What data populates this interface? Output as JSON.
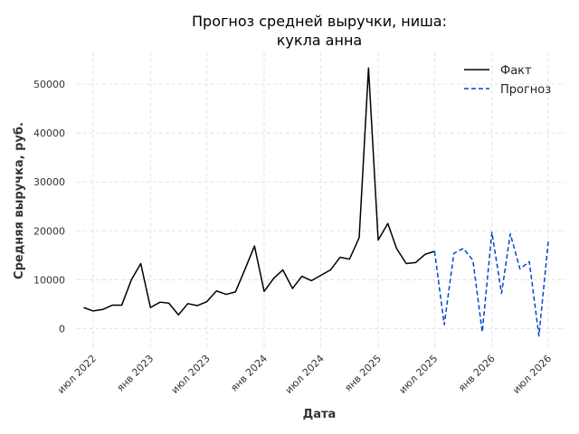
{
  "chart_data": {
    "type": "line",
    "title_lines": [
      "Прогноз средней выручки, ниша:",
      "кукла анна"
    ],
    "xlabel": "Дата",
    "ylabel": "Средняя выручка, руб.",
    "y_ticks": [
      0,
      10000,
      20000,
      30000,
      40000,
      50000
    ],
    "ylim": [
      -4000,
      56500
    ],
    "xlim": [
      "2022-05-10",
      "2026-08-25"
    ],
    "x_ticks": [
      {
        "date": "2022-07-01",
        "label": "июл 2022"
      },
      {
        "date": "2023-01-01",
        "label": "янв 2023"
      },
      {
        "date": "2023-07-01",
        "label": "июл 2023"
      },
      {
        "date": "2024-01-01",
        "label": "янв 2024"
      },
      {
        "date": "2024-07-01",
        "label": "июл 2024"
      },
      {
        "date": "2025-01-01",
        "label": "янв 2025"
      },
      {
        "date": "2025-07-01",
        "label": "июл 2025"
      },
      {
        "date": "2026-01-01",
        "label": "янв 2026"
      },
      {
        "date": "2026-07-01",
        "label": "июл 2026"
      }
    ],
    "grid": true,
    "legend_position": "top-right",
    "series": [
      {
        "name": "Факт",
        "color": "#000000",
        "style": "solid",
        "points": [
          [
            "2022-06-01",
            4300
          ],
          [
            "2022-07-01",
            3600
          ],
          [
            "2022-08-01",
            3900
          ],
          [
            "2022-09-01",
            4800
          ],
          [
            "2022-10-01",
            4800
          ],
          [
            "2022-11-01",
            10000
          ],
          [
            "2022-12-01",
            13300
          ],
          [
            "2023-01-01",
            4300
          ],
          [
            "2023-02-01",
            5400
          ],
          [
            "2023-03-01",
            5200
          ],
          [
            "2023-04-01",
            2800
          ],
          [
            "2023-05-01",
            5100
          ],
          [
            "2023-06-01",
            4700
          ],
          [
            "2023-07-01",
            5500
          ],
          [
            "2023-08-01",
            7700
          ],
          [
            "2023-09-01",
            7000
          ],
          [
            "2023-10-01",
            7500
          ],
          [
            "2023-11-01",
            12200
          ],
          [
            "2023-12-01",
            16900
          ],
          [
            "2024-01-01",
            7600
          ],
          [
            "2024-02-01",
            10300
          ],
          [
            "2024-03-01",
            12000
          ],
          [
            "2024-04-01",
            8200
          ],
          [
            "2024-05-01",
            10700
          ],
          [
            "2024-06-01",
            9800
          ],
          [
            "2024-07-01",
            10900
          ],
          [
            "2024-08-01",
            12000
          ],
          [
            "2024-09-01",
            14600
          ],
          [
            "2024-10-01",
            14200
          ],
          [
            "2024-11-01",
            18600
          ],
          [
            "2024-12-01",
            53300
          ],
          [
            "2025-01-01",
            18100
          ],
          [
            "2025-02-01",
            21500
          ],
          [
            "2025-03-01",
            16400
          ],
          [
            "2025-04-01",
            13300
          ],
          [
            "2025-05-01",
            13500
          ],
          [
            "2025-06-01",
            15200
          ],
          [
            "2025-07-01",
            15800
          ]
        ]
      },
      {
        "name": "Прогноз",
        "color": "#0047cc",
        "style": "dashed",
        "points": [
          [
            "2025-07-01",
            15800
          ],
          [
            "2025-08-01",
            800
          ],
          [
            "2025-09-01",
            15400
          ],
          [
            "2025-10-01",
            16400
          ],
          [
            "2025-11-01",
            14000
          ],
          [
            "2025-12-01",
            -700
          ],
          [
            "2026-01-01",
            19700
          ],
          [
            "2026-02-01",
            7200
          ],
          [
            "2026-03-01",
            19400
          ],
          [
            "2026-04-01",
            12200
          ],
          [
            "2026-05-01",
            13700
          ],
          [
            "2026-06-01",
            -1500
          ],
          [
            "2026-07-01",
            17900
          ]
        ]
      }
    ]
  }
}
